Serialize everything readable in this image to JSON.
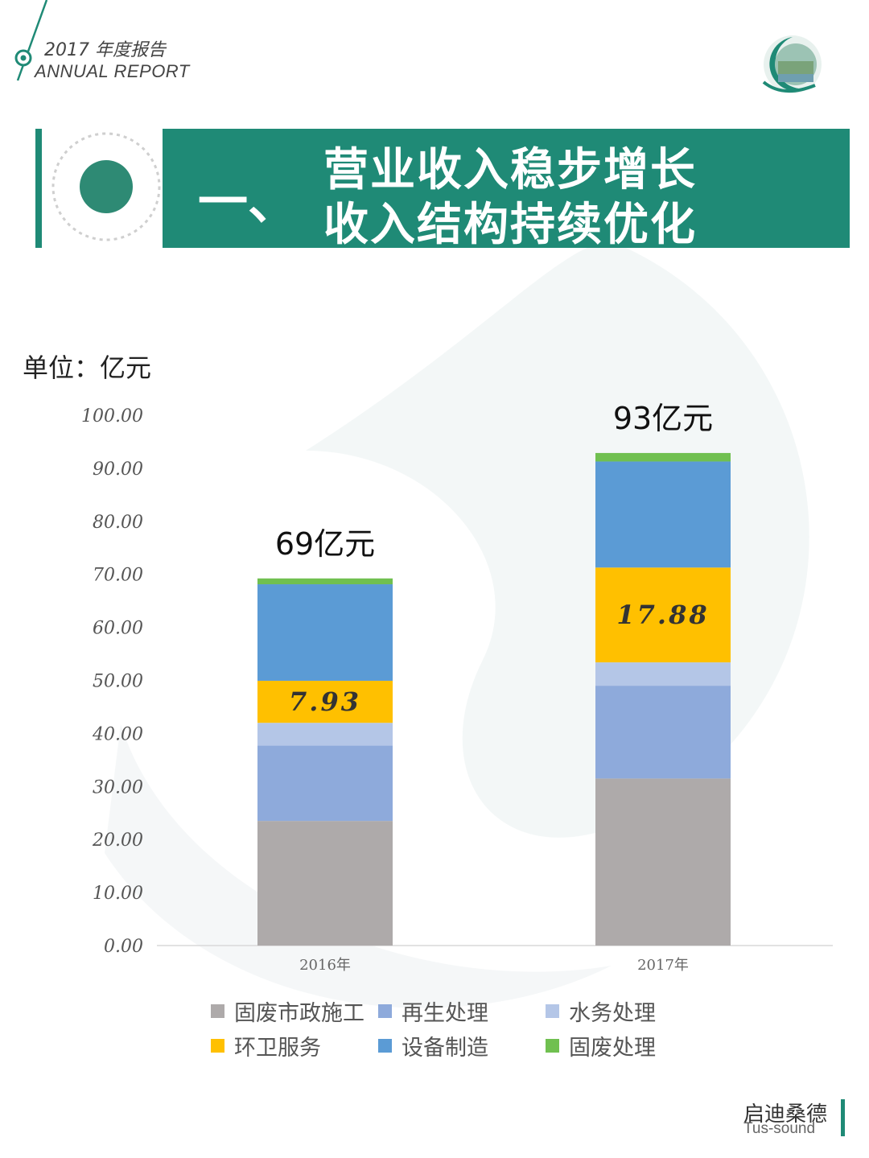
{
  "header": {
    "report_year": "2017 年度报告",
    "report_en": "ANNUAL REPORT"
  },
  "banner": {
    "section_number": "一、",
    "title_line1": "营业收入稳步增长",
    "title_line2": "收入结构持续优化"
  },
  "unit_label": "单位：亿元",
  "chart_data": {
    "type": "bar",
    "stacked": true,
    "categories": [
      "2016年",
      "2017年"
    ],
    "ylim": [
      0,
      100
    ],
    "yticks": [
      "0.00",
      "10.00",
      "20.00",
      "30.00",
      "40.00",
      "50.00",
      "60.00",
      "70.00",
      "80.00",
      "90.00",
      "100.00"
    ],
    "series": [
      {
        "name": "固废市政施工",
        "color": "#aeaaaa",
        "values": [
          23.5,
          31.5
        ]
      },
      {
        "name": "再生处理",
        "color": "#8eaadb",
        "values": [
          14.2,
          17.5
        ]
      },
      {
        "name": "水务处理",
        "color": "#b4c6e7",
        "values": [
          4.3,
          4.4
        ]
      },
      {
        "name": "环卫服务",
        "color": "#ffc000",
        "values": [
          7.93,
          17.88
        ]
      },
      {
        "name": "设备制造",
        "color": "#5b9bd5",
        "values": [
          18.2,
          20.0
        ]
      },
      {
        "name": "固废处理",
        "color": "#70c050",
        "values": [
          1.1,
          1.6
        ]
      }
    ],
    "segment_labels": [
      {
        "category": 0,
        "series": 3,
        "text": "7.93"
      },
      {
        "category": 1,
        "series": 3,
        "text": "17.88"
      }
    ],
    "totals": [
      "69亿元",
      "93亿元"
    ],
    "legend": "bottom",
    "grid": false
  },
  "footer": {
    "brand_cn": "启迪桑德",
    "brand_en": "Tus-sound"
  },
  "colors": {
    "accent": "#1f8a76"
  }
}
